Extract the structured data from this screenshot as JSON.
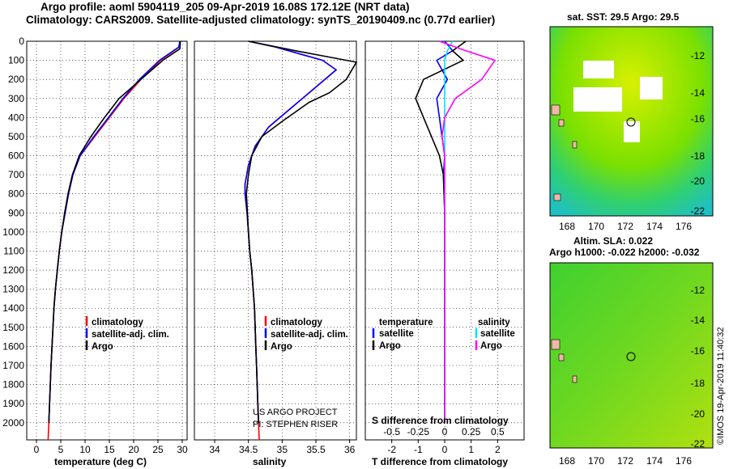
{
  "header": {
    "title_line1": "Argo profile: aoml 5904119_205 09-Apr-2019 16.08S 172.12E (NRT data)",
    "title_line2": "Climatology: CARS2009. Satellite-adjusted climatology: synTS_20190409.nc (0.77d earlier)"
  },
  "credits": {
    "project": "US ARGO PROJECT",
    "pi": "PI: STEPHEN RISER",
    "imos": "©IMOS 19-Apr-2019 11:40:32"
  },
  "maps": {
    "sst_label": "sat. SST: 29.5 Argo: 29.5",
    "sla_label1": "Altim. SLA: 0.022",
    "sla_label2": "Argo h1000: -0.022 h2000: -0.032",
    "lon_ticks": [
      "168",
      "170",
      "172",
      "174",
      "176"
    ],
    "lat_ticks": [
      "-12",
      "-14",
      "-16",
      "-18",
      "-20",
      "-22"
    ]
  },
  "colors": {
    "climatology": "#ff0000",
    "satellite": "#0000ff",
    "argo": "#000000",
    "s_satellite": "#00e0ff",
    "s_argo": "#ff00ff"
  },
  "legend": {
    "climatology": "climatology",
    "satellite": "satellite-adj. clim.",
    "argo": "Argo",
    "diff_temperature": "temperature",
    "diff_salinity": "salinity",
    "diff_satellite": "satellite",
    "diff_argo": "Argo"
  },
  "chart_data": [
    {
      "type": "line",
      "xlabel": "temperature (deg C)",
      "ylabel": "",
      "xlim": [
        -2,
        31
      ],
      "ylim": [
        2090,
        0
      ],
      "x_ticks": [
        0,
        5,
        10,
        15,
        20,
        25,
        30
      ],
      "y_ticks": [
        0,
        100,
        200,
        300,
        400,
        500,
        600,
        700,
        800,
        900,
        1000,
        1100,
        1200,
        1300,
        1400,
        1500,
        1600,
        1700,
        1800,
        1900,
        2000
      ],
      "series": [
        {
          "name": "climatology",
          "x": [
            29.5,
            29.4,
            25.5,
            21.5,
            18,
            15,
            12,
            9,
            7.5,
            6.6,
            5.9,
            5.2,
            4.7,
            4.3,
            3.9,
            3.6,
            3.4,
            3.2,
            3.0,
            2.85,
            2.7,
            2.55,
            2.4
          ],
          "y": [
            0,
            30,
            100,
            200,
            300,
            400,
            500,
            600,
            700,
            800,
            900,
            1000,
            1100,
            1200,
            1300,
            1400,
            1500,
            1600,
            1700,
            1800,
            1900,
            2000,
            2090
          ]
        },
        {
          "name": "satellite-adj. clim.",
          "x": [
            29.5,
            29.3,
            25.3,
            21.2,
            17.8,
            14.8,
            11.8,
            9,
            7.5,
            6.6,
            5.9,
            5.2,
            4.7,
            4.3,
            3.9,
            3.6,
            3.4,
            3.2,
            3.0,
            2.85,
            2.7,
            2.55
          ],
          "y": [
            0,
            30,
            100,
            200,
            300,
            400,
            500,
            600,
            700,
            800,
            900,
            1000,
            1100,
            1200,
            1300,
            1400,
            1500,
            1600,
            1700,
            1800,
            1900,
            2000
          ]
        },
        {
          "name": "Argo",
          "x": [
            29.6,
            29.5,
            26,
            21.5,
            17,
            14,
            11.2,
            8.8,
            7.4,
            6.5,
            5.8,
            5.2,
            4.7,
            4.3,
            3.9,
            3.6,
            3.4,
            3.2,
            3.0,
            2.85,
            2.7,
            2.55
          ],
          "y": [
            0,
            40,
            100,
            200,
            300,
            400,
            500,
            600,
            700,
            800,
            900,
            1000,
            1100,
            1200,
            1300,
            1400,
            1500,
            1600,
            1700,
            1800,
            1900,
            2000
          ]
        }
      ]
    },
    {
      "type": "line",
      "xlabel": "salinity",
      "ylabel": "",
      "xlim": [
        33.7,
        36.1
      ],
      "ylim": [
        2090,
        0
      ],
      "x_ticks": [
        34,
        34.5,
        35,
        35.5,
        36
      ],
      "series": [
        {
          "name": "climatology",
          "x": [
            34.5,
            34.9,
            35.6,
            35.8,
            35.3,
            34.8,
            34.6,
            34.5,
            34.45,
            34.45,
            34.48,
            34.5,
            34.52,
            34.55,
            34.57,
            34.59,
            34.6,
            34.61,
            34.62,
            34.63,
            34.64,
            34.65,
            34.66
          ],
          "y": [
            0,
            30,
            100,
            150,
            300,
            450,
            550,
            650,
            750,
            800,
            900,
            1000,
            1100,
            1200,
            1300,
            1400,
            1500,
            1600,
            1700,
            1800,
            1900,
            2000,
            2090
          ]
        },
        {
          "name": "satellite-adj. clim.",
          "x": [
            34.5,
            34.9,
            35.6,
            35.8,
            35.3,
            34.8,
            34.6,
            34.5,
            34.45,
            34.45,
            34.48,
            34.5,
            34.52,
            34.55,
            34.57,
            34.59,
            34.6,
            34.61,
            34.62,
            34.63,
            34.64,
            34.65
          ],
          "y": [
            0,
            30,
            100,
            150,
            300,
            450,
            550,
            650,
            750,
            800,
            900,
            1000,
            1100,
            1200,
            1300,
            1400,
            1500,
            1600,
            1700,
            1800,
            1900,
            2000
          ]
        },
        {
          "name": "Argo",
          "x": [
            34.5,
            35.2,
            36.1,
            35.95,
            35.7,
            35.4,
            35.0,
            34.7,
            34.55,
            34.5,
            34.47,
            34.5,
            34.52,
            34.55,
            34.57,
            34.59,
            34.6,
            34.61,
            34.62,
            34.63,
            34.64,
            34.65
          ],
          "y": [
            0,
            50,
            110,
            200,
            270,
            320,
            420,
            500,
            600,
            700,
            800,
            1000,
            1100,
            1200,
            1300,
            1400,
            1500,
            1600,
            1700,
            1800,
            1900,
            2000
          ]
        }
      ]
    },
    {
      "type": "line",
      "xlabel": "T difference from climatology",
      "title": "S difference from climatology",
      "xlim": [
        -3,
        3
      ],
      "ylim": [
        2090,
        0
      ],
      "x_ticks": [
        -2,
        -1,
        0,
        1,
        2
      ],
      "x2_ticks": [
        "-0.5",
        "-0.25",
        "0",
        "0.25",
        "0.5"
      ],
      "series": [
        {
          "name": "temperature satellite",
          "x": [
            0,
            0.3,
            -0.3,
            0.1,
            -0.3,
            -0.2,
            -0.1,
            0.0,
            -0.05,
            0,
            0,
            0,
            0,
            0,
            0
          ],
          "y": [
            0,
            50,
            100,
            200,
            300,
            400,
            500,
            600,
            700,
            900,
            1100,
            1300,
            1500,
            1800,
            2000
          ]
        },
        {
          "name": "temperature Argo",
          "x": [
            0.8,
            0.3,
            0.7,
            -0.8,
            -1.1,
            -0.8,
            -0.5,
            -0.2,
            -0.05,
            0,
            0,
            0,
            0,
            0,
            0
          ],
          "y": [
            0,
            50,
            100,
            200,
            300,
            400,
            500,
            600,
            700,
            900,
            1100,
            1300,
            1500,
            1800,
            2000
          ]
        },
        {
          "name": "salinity satellite",
          "x": [
            0.3,
            0.1,
            0.0,
            0.0,
            0.0,
            0.0,
            0.0,
            0.0,
            0.0,
            0,
            0,
            0,
            0,
            0,
            0
          ],
          "y": [
            0,
            50,
            100,
            200,
            300,
            400,
            500,
            600,
            700,
            900,
            1100,
            1300,
            1500,
            1800,
            2000
          ]
        },
        {
          "name": "salinity Argo",
          "x": [
            -0.2,
            0.8,
            1.9,
            1.4,
            0.4,
            0.0,
            -0.1,
            0.0,
            0.0,
            0,
            0,
            0,
            0,
            0,
            0
          ],
          "y": [
            0,
            50,
            100,
            200,
            300,
            400,
            500,
            600,
            700,
            900,
            1100,
            1300,
            1500,
            1800,
            2000
          ]
        }
      ]
    }
  ]
}
